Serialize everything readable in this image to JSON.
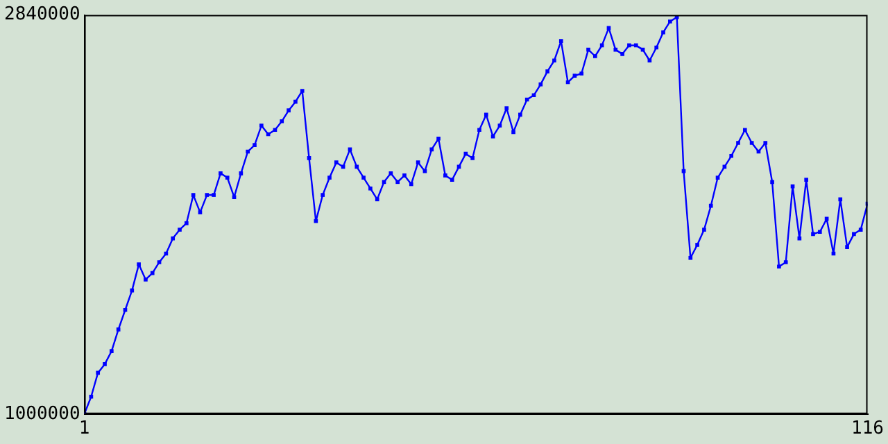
{
  "chart_data": {
    "type": "line",
    "x": [
      1,
      2,
      3,
      4,
      5,
      6,
      7,
      8,
      9,
      10,
      11,
      12,
      13,
      14,
      15,
      16,
      17,
      18,
      19,
      20,
      21,
      22,
      23,
      24,
      25,
      26,
      27,
      28,
      29,
      30,
      31,
      32,
      33,
      34,
      35,
      36,
      37,
      38,
      39,
      40,
      41,
      42,
      43,
      44,
      45,
      46,
      47,
      48,
      49,
      50,
      51,
      52,
      53,
      54,
      55,
      56,
      57,
      58,
      59,
      60,
      61,
      62,
      63,
      64,
      65,
      66,
      67,
      68,
      69,
      70,
      71,
      72,
      73,
      74,
      75,
      76,
      77,
      78,
      79,
      80,
      81,
      82,
      83,
      84,
      85,
      86,
      87,
      88,
      89,
      90,
      91,
      92,
      93,
      94,
      95,
      96,
      97,
      98,
      99,
      100,
      101,
      102,
      103,
      104,
      105,
      106,
      107,
      108,
      109,
      110,
      111,
      112,
      113,
      114,
      115,
      116
    ],
    "series": [
      {
        "color": "#0000ff",
        "values": [
          1000000,
          1080000,
          1190000,
          1230000,
          1290000,
          1390000,
          1480000,
          1570000,
          1690000,
          1620000,
          1650000,
          1700000,
          1740000,
          1810000,
          1850000,
          1880000,
          2010000,
          1930000,
          2010000,
          2010000,
          2110000,
          2090000,
          2000000,
          2110000,
          2210000,
          2240000,
          2330000,
          2290000,
          2310000,
          2350000,
          2400000,
          2440000,
          2490000,
          2180000,
          1890000,
          2010000,
          2090000,
          2160000,
          2140000,
          2220000,
          2140000,
          2090000,
          2040000,
          1990000,
          2070000,
          2110000,
          2070000,
          2100000,
          2060000,
          2160000,
          2120000,
          2220000,
          2270000,
          2100000,
          2080000,
          2140000,
          2200000,
          2180000,
          2310000,
          2380000,
          2280000,
          2330000,
          2410000,
          2300000,
          2380000,
          2450000,
          2470000,
          2520000,
          2580000,
          2630000,
          2720000,
          2530000,
          2560000,
          2570000,
          2680000,
          2650000,
          2700000,
          2780000,
          2680000,
          2660000,
          2700000,
          2700000,
          2680000,
          2630000,
          2690000,
          2760000,
          2810000,
          2830000,
          2120000,
          1720000,
          1780000,
          1850000,
          1960000,
          2090000,
          2140000,
          2190000,
          2250000,
          2310000,
          2250000,
          2210000,
          2250000,
          2070000,
          1680000,
          1700000,
          2050000,
          1810000,
          2080000,
          1830000,
          1840000,
          1900000,
          1740000,
          1990000,
          1770000,
          1830000,
          1850000,
          1970000
        ]
      }
    ],
    "xlim": [
      1,
      116
    ],
    "xticks": [
      1,
      116
    ],
    "ylim": [
      1000000,
      2840000
    ],
    "yticks": [
      1000000,
      2840000
    ],
    "grid": false,
    "legend": false,
    "marker": "square",
    "line_style": "solid"
  }
}
